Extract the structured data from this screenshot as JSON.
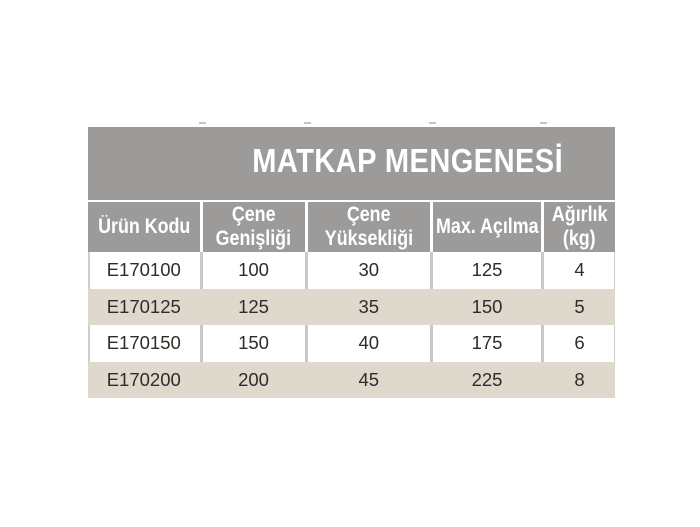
{
  "chart_data": {
    "type": "table",
    "title": "MATKAP MENGENESİ",
    "columns": [
      "Ürün Kodu",
      "Çene Genişliği",
      "Çene Yüksekliği",
      "Max. Açılma",
      "Ağırlık (kg)"
    ],
    "header_lines": [
      [
        "Ürün Kodu"
      ],
      [
        "Çene",
        "Genişliği"
      ],
      [
        "Çene",
        "Yüksekliği"
      ],
      [
        "Max. Açılma"
      ],
      [
        "Ağırlık",
        "(kg)"
      ]
    ],
    "rows": [
      [
        "E170100",
        "100",
        "30",
        "125",
        "4"
      ],
      [
        "E170125",
        "125",
        "35",
        "150",
        "5"
      ],
      [
        "E170150",
        "150",
        "40",
        "175",
        "6"
      ],
      [
        "E170200",
        "200",
        "45",
        "225",
        "8"
      ]
    ]
  },
  "colors": {
    "title_band": "#9d9b9a",
    "header_cell": "#9d9b9a",
    "header_text": "#ffffff",
    "row_alt_beige": "#ded9cc",
    "row_plain_white": "#ffffff",
    "cell_text": "#302c27",
    "divider_gray": "#cac8c5",
    "tick_gray": "#c6c4c2"
  }
}
